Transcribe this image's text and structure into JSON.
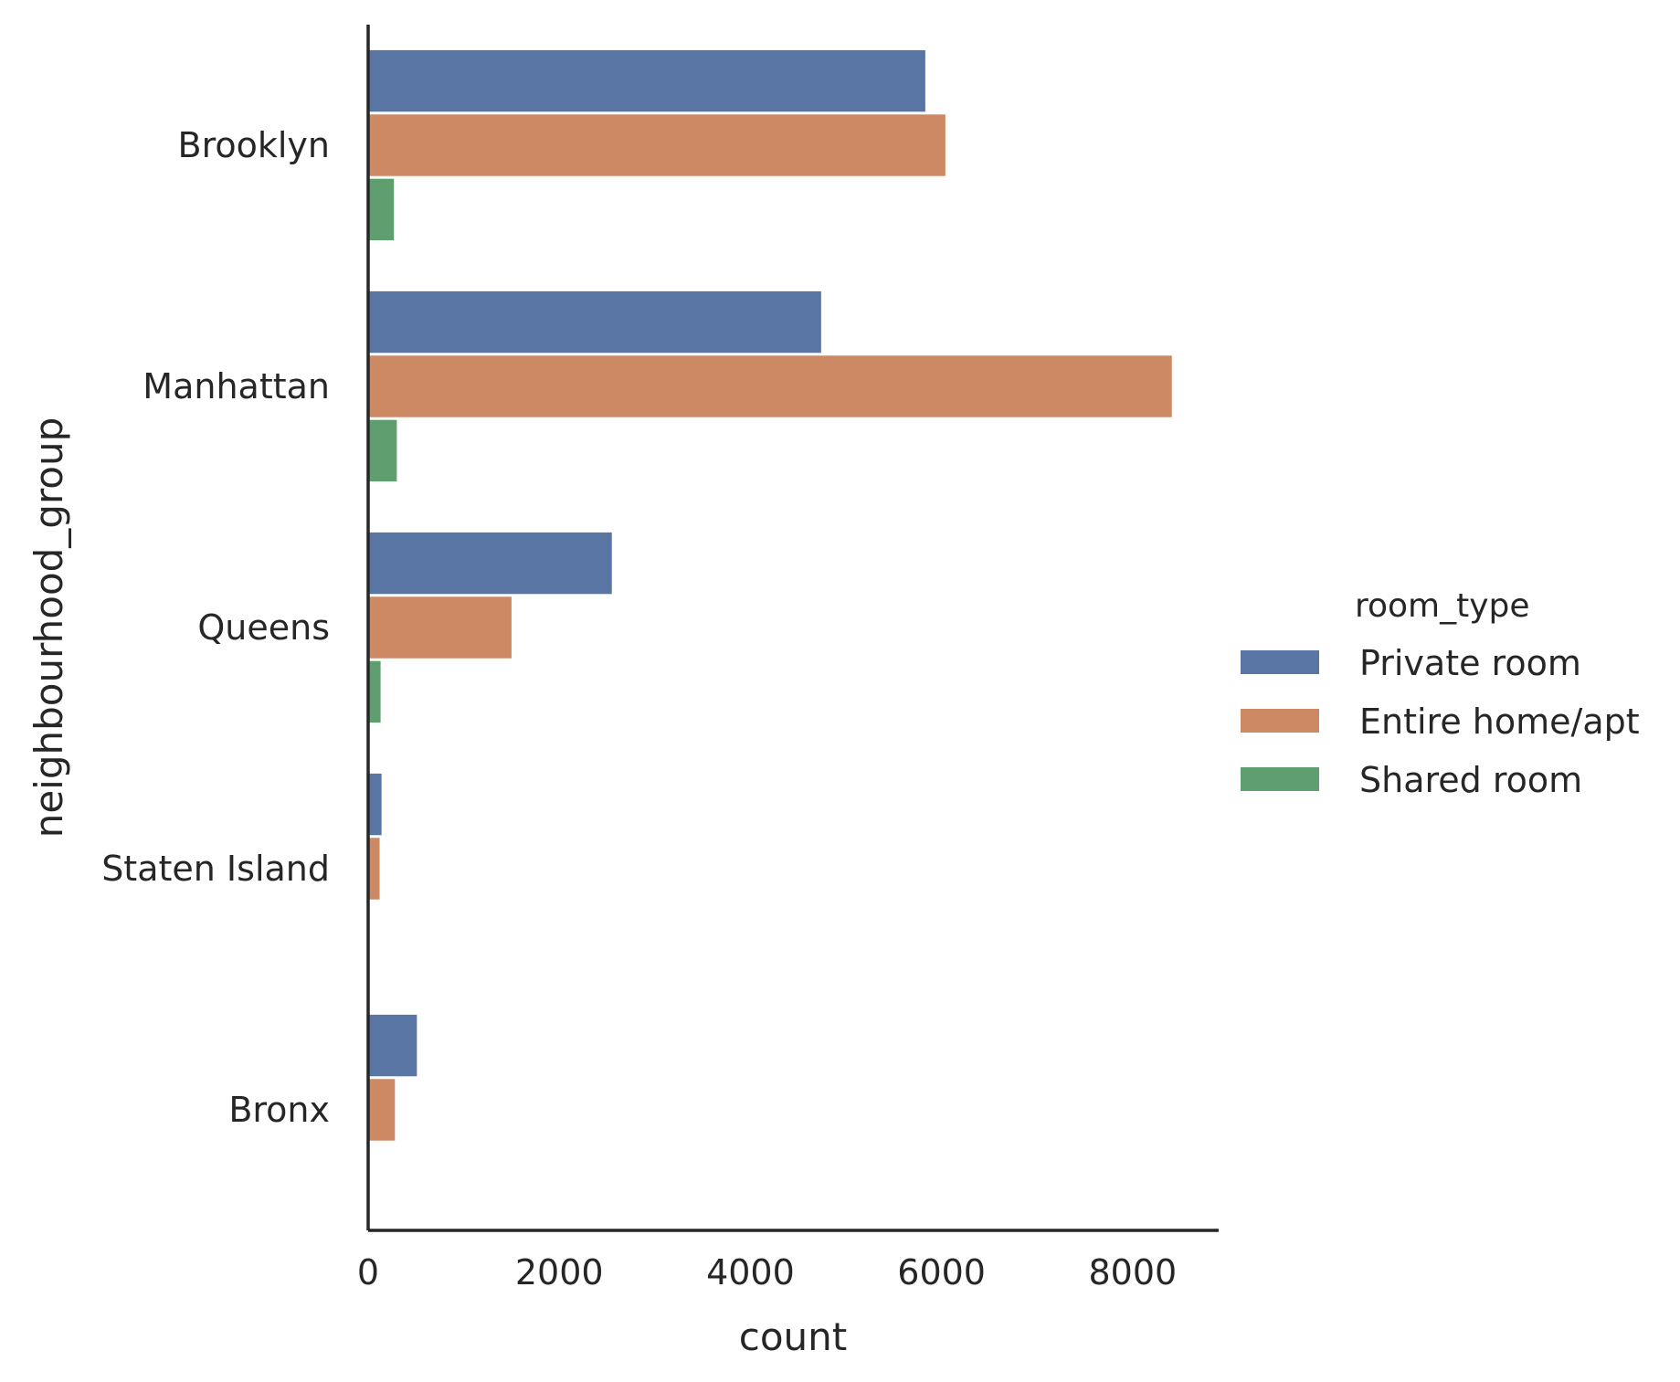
{
  "chart_data": {
    "type": "bar",
    "orientation": "horizontal",
    "categories": [
      "Brooklyn",
      "Manhattan",
      "Queens",
      "Staten Island",
      "Bronx"
    ],
    "series": [
      {
        "name": "Private room",
        "color": "#5875a4",
        "values": [
          5830,
          4740,
          2550,
          140,
          510
        ]
      },
      {
        "name": "Entire home/apt",
        "color": "#cc8963",
        "values": [
          6040,
          8410,
          1500,
          120,
          280
        ]
      },
      {
        "name": "Shared room",
        "color": "#5f9e6e",
        "values": [
          270,
          300,
          130,
          0,
          0
        ]
      }
    ],
    "xlabel": "count",
    "ylabel": "neighbourhood_group",
    "xlim": [
      0,
      8900
    ],
    "xticks": [
      0,
      2000,
      4000,
      6000,
      8000
    ],
    "xtick_labels": [
      "0",
      "2000",
      "4000",
      "6000",
      "8000"
    ],
    "legend": {
      "title": "room_type",
      "placement": "right"
    },
    "grid": false
  }
}
